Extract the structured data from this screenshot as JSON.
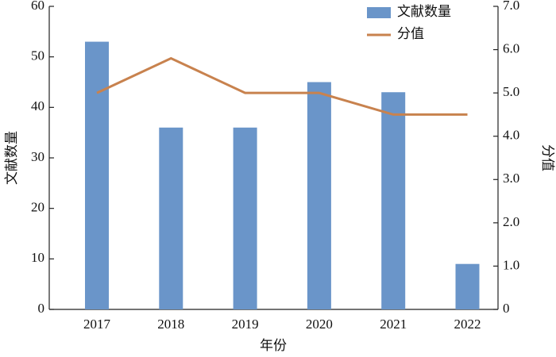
{
  "chart_data": {
    "type": "bar_line",
    "categories": [
      "2017",
      "2018",
      "2019",
      "2020",
      "2021",
      "2022"
    ],
    "series": [
      {
        "name": "文献数量",
        "type": "bar",
        "color": "#6a95c9",
        "values": [
          53,
          36,
          36,
          45,
          43,
          9
        ]
      },
      {
        "name": "分值",
        "type": "line",
        "axis": "y2",
        "color": "#c8824e",
        "values": [
          5.0,
          5.8,
          5.0,
          5.0,
          4.5,
          4.5
        ]
      }
    ],
    "x_label": "年份",
    "y_label": "文献数量",
    "y2_label": "分值",
    "ylim": [
      0,
      60
    ],
    "yticks": [
      0,
      10,
      20,
      30,
      40,
      50,
      60
    ],
    "y2lim": [
      0,
      7
    ],
    "y2ticks": [
      0,
      {
        "value": 1,
        "label": "1.0"
      },
      {
        "value": 2,
        "label": "2.0"
      },
      {
        "value": 3,
        "label": "3.0"
      },
      {
        "value": 4,
        "label": "4.0"
      },
      {
        "value": 5,
        "label": "5.0"
      },
      {
        "value": 6,
        "label": "6.0"
      },
      {
        "value": 7,
        "label": "7.0"
      }
    ],
    "legend": "upper right"
  }
}
